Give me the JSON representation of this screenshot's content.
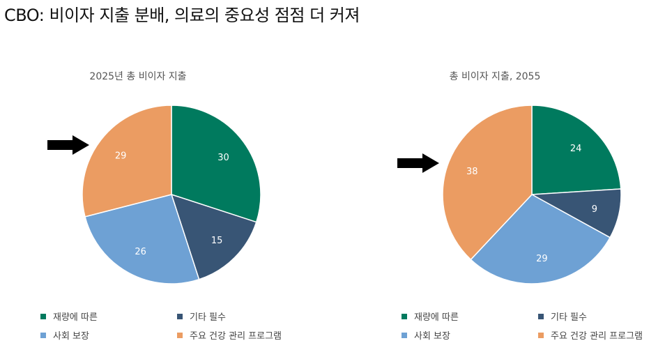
{
  "main_title": "CBO: 비이자 지출 분배, 의료의 중요성 점점 더 커져",
  "colors": {
    "discretionary": "#007a5e",
    "other_mandatory": "#385575",
    "social_security": "#6ea1d4",
    "health": "#eb9c62"
  },
  "chart_data": [
    {
      "type": "pie",
      "title": "2025년 총 비이자 지출",
      "categories": [
        "재량에 따른",
        "기타 필수",
        "사회 보장",
        "주요 건강 관리 프로그램"
      ],
      "values": [
        30,
        15,
        26,
        29
      ],
      "labels": [
        "30",
        "15",
        "26",
        "29"
      ],
      "highlight": "주요 건강 관리 프로그램"
    },
    {
      "type": "pie",
      "title": "총 비이자 지출, 2055",
      "categories": [
        "재량에 따른",
        "기타 필수",
        "사회 보장",
        "주요 건강 관리 프로그램"
      ],
      "values": [
        24,
        9,
        29,
        38
      ],
      "labels": [
        "24",
        "9",
        "29",
        "38"
      ],
      "highlight": "주요 건강 관리 프로그램"
    }
  ],
  "legend": [
    "재량에 따른",
    "기타 필수",
    "사회 보장",
    "주요 건강 관리 프로그램"
  ]
}
